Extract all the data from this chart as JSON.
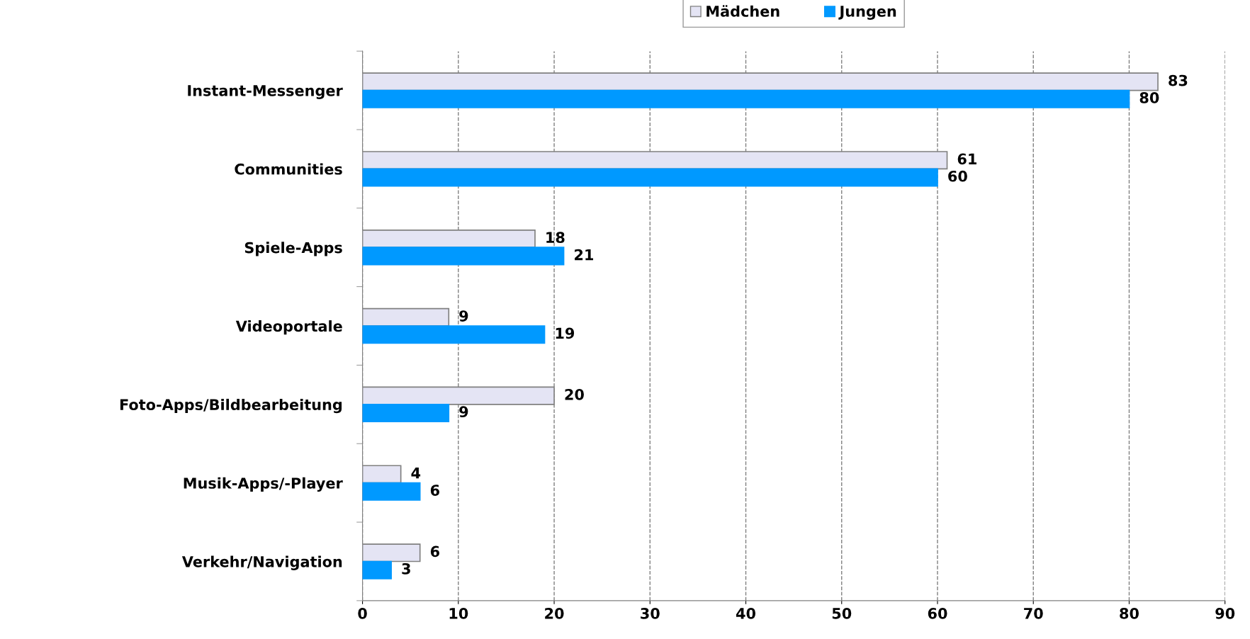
{
  "chart_data": {
    "type": "bar",
    "orientation": "horizontal",
    "categories": [
      "Instant-Messenger",
      "Communities",
      "Spiele-Apps",
      "Videoportale",
      "Foto-Apps/Bildbearbeitung",
      "Musik-Apps/-Player",
      "Verkehr/Navigation"
    ],
    "series": [
      {
        "name": "Mädchen",
        "color": "#e4e4f4",
        "values": [
          83,
          61,
          18,
          9,
          20,
          4,
          6
        ]
      },
      {
        "name": "Jungen",
        "color": "#0099ff",
        "values": [
          80,
          60,
          21,
          19,
          9,
          6,
          3
        ]
      }
    ],
    "xlim": [
      0,
      90
    ],
    "xticks": [
      0,
      10,
      20,
      30,
      40,
      50,
      60,
      70,
      80,
      90
    ],
    "grid": "x",
    "legend": "top",
    "data_labels": true
  }
}
